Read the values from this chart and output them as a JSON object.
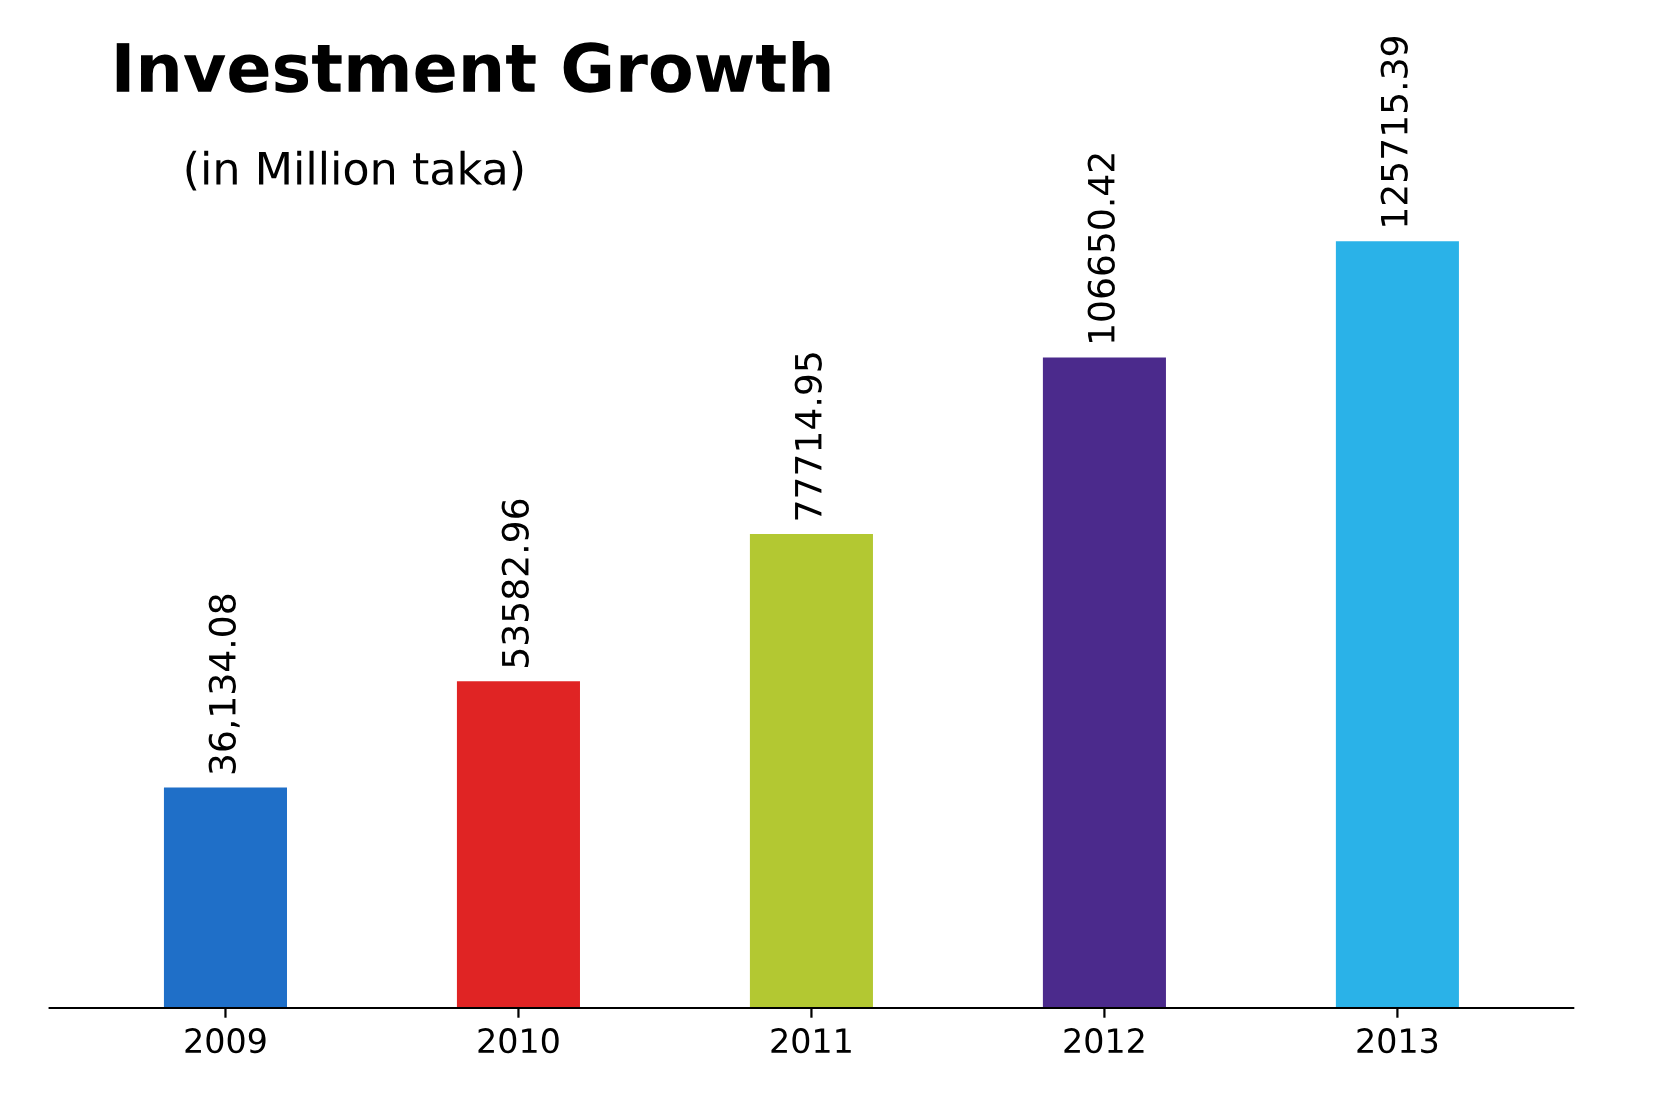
{
  "chart_data": {
    "type": "bar",
    "title": "Investment Growth",
    "subtitle": "(in Million taka)",
    "categories": [
      "2009",
      "2010",
      "2011",
      "2012",
      "2013"
    ],
    "values": [
      36134.08,
      53582.96,
      77714.95,
      106650.42,
      125715.39
    ],
    "colors": [
      "#1f6fc8",
      "#e02424",
      "#b3c832",
      "#4b2a8c",
      "#2ab2e8"
    ],
    "value_labels": [
      "36,134.08",
      "53582.96",
      "77714.95",
      "106650.42",
      "125715.39"
    ],
    "grid": false,
    "legend": false
  }
}
